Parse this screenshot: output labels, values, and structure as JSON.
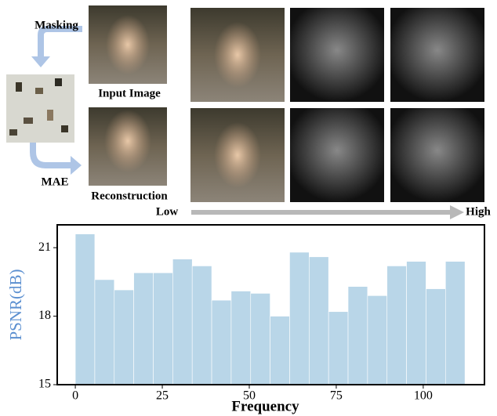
{
  "figure": {
    "masking": "Masking",
    "input_image": "Input Image",
    "mae": "MAE",
    "reconstruction": "Reconstruction",
    "low": "Low",
    "high": "High"
  },
  "chart_data": {
    "type": "histogram",
    "ylabel": "PSNR(dB)",
    "xlabel": "Frequency",
    "color": "#b9d6e8",
    "bins": [
      0,
      5.6,
      11.2,
      16.8,
      22.4,
      28,
      33.6,
      39.2,
      44.8,
      50.4,
      56,
      61.6,
      67.2,
      72.8,
      78.4,
      84,
      89.6,
      95.2,
      100.8,
      106.4,
      112
    ],
    "values": [
      21.6,
      19.6,
      19.15,
      19.9,
      19.9,
      20.5,
      20.2,
      18.7,
      19.1,
      19.0,
      18.0,
      20.8,
      20.6,
      18.2,
      19.3,
      18.9,
      20.2,
      20.4,
      19.2,
      20.4
    ],
    "xlim": [
      -5.2,
      117.6
    ],
    "ylim": [
      15,
      22
    ],
    "xticks": [
      0,
      25,
      50,
      75,
      100
    ],
    "yticks": [
      15,
      18,
      21
    ]
  }
}
